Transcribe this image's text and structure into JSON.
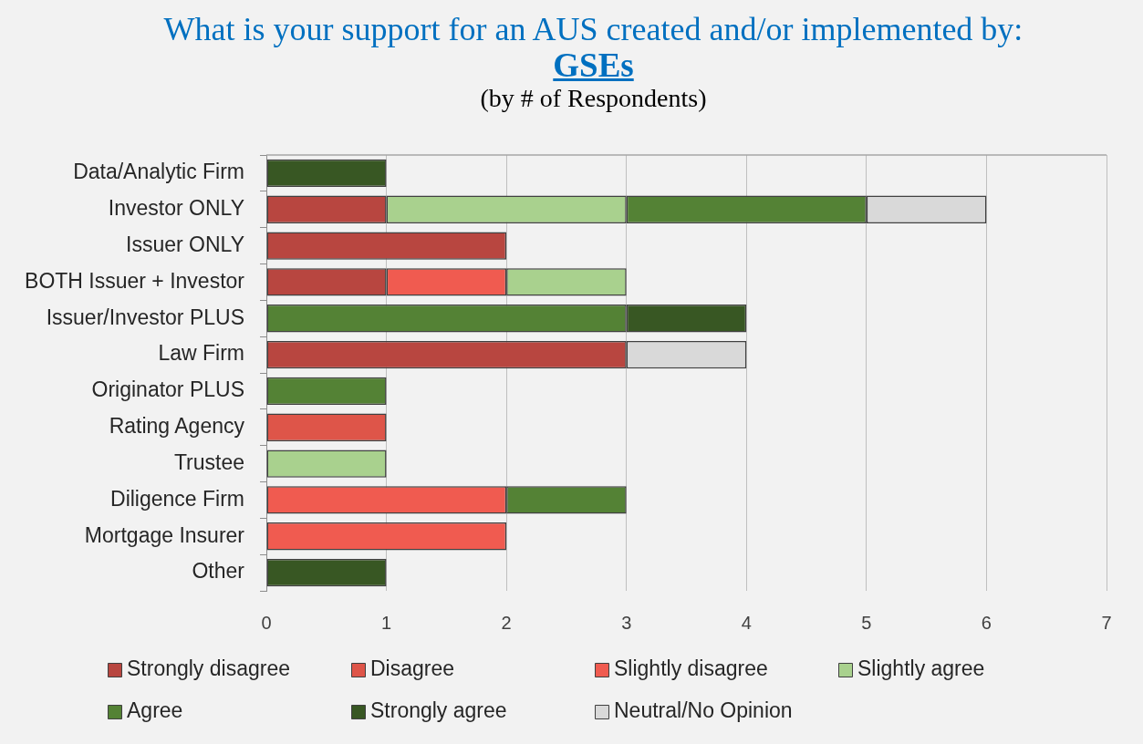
{
  "chart_data": {
    "type": "bar",
    "orientation": "horizontal",
    "stacked": true,
    "title": "What is your support for an AUS created and/or implemented by:",
    "subtitle": "GSEs",
    "annotations": [
      "(by # of Respondents)"
    ],
    "categories": [
      "Data/Analytic Firm",
      "Investor ONLY",
      "Issuer ONLY",
      "BOTH Issuer + Investor",
      "Issuer/Investor PLUS",
      "Law Firm",
      "Originator PLUS",
      "Rating Agency",
      "Trustee",
      "Diligence Firm",
      "Mortgage Insurer",
      "Other"
    ],
    "series": [
      {
        "name": "Strongly disagree",
        "color": "#b84640",
        "values": [
          null,
          1,
          2,
          1,
          null,
          3,
          null,
          null,
          null,
          null,
          null,
          null
        ]
      },
      {
        "name": "Disagree",
        "color": "#de5549",
        "values": [
          null,
          null,
          null,
          null,
          null,
          null,
          null,
          1,
          null,
          null,
          null,
          null
        ]
      },
      {
        "name": "Slightly disagree",
        "color": "#f05b50",
        "values": [
          null,
          null,
          null,
          1,
          null,
          null,
          null,
          null,
          null,
          2,
          2,
          null
        ]
      },
      {
        "name": "Slightly agree",
        "color": "#a9d18e",
        "values": [
          null,
          2,
          null,
          1,
          null,
          null,
          null,
          null,
          1,
          null,
          null,
          null
        ]
      },
      {
        "name": "Agree",
        "color": "#548235",
        "values": [
          null,
          2,
          null,
          null,
          3,
          null,
          1,
          null,
          null,
          1,
          null,
          null
        ]
      },
      {
        "name": "Strongly agree",
        "color": "#385723",
        "values": [
          1,
          null,
          null,
          null,
          1,
          null,
          null,
          null,
          null,
          null,
          null,
          1
        ]
      },
      {
        "name": "Neutral/No Opinion",
        "color": "#d9d9d9",
        "values": [
          null,
          1,
          null,
          null,
          null,
          1,
          null,
          null,
          null,
          null,
          null,
          null
        ]
      }
    ],
    "xlim": [
      0,
      7
    ],
    "xticks": [
      0,
      1,
      2,
      3,
      4,
      5,
      6,
      7
    ],
    "grid": "x",
    "legend": "bottom"
  }
}
